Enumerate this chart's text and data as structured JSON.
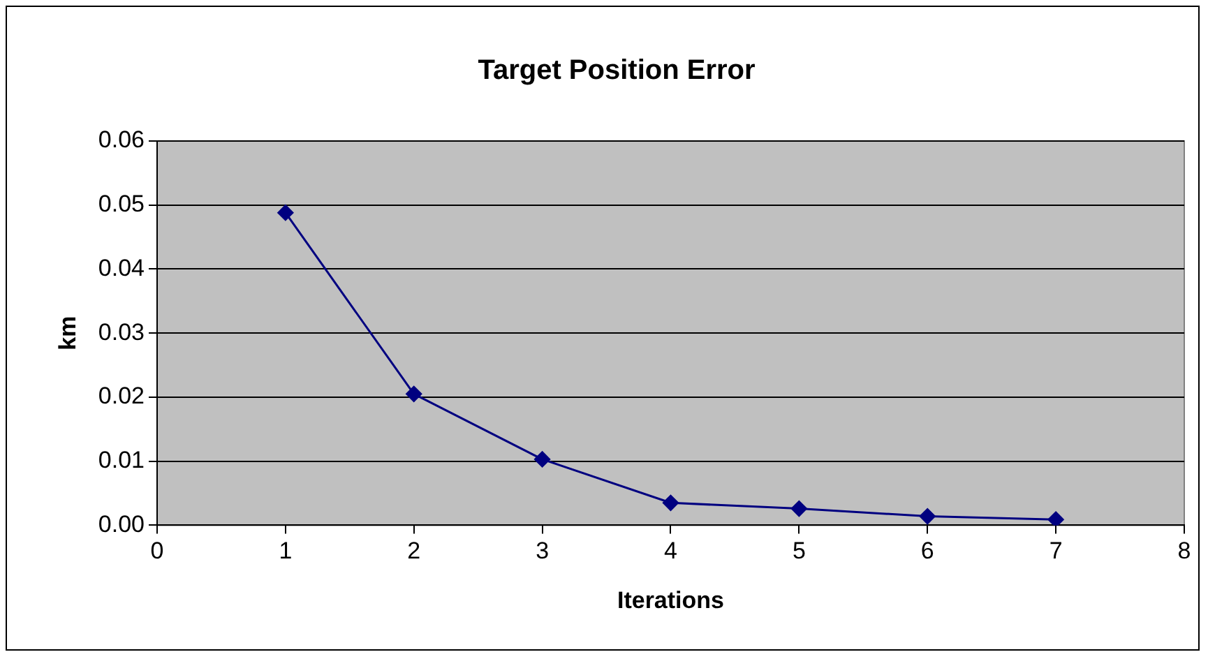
{
  "chart_data": {
    "type": "line",
    "title": "Target Position Error",
    "xlabel": "Iterations",
    "ylabel": "km",
    "x": [
      1,
      2,
      3,
      4,
      5,
      6,
      7
    ],
    "series": [
      {
        "color": "#000080",
        "values": [
          0.0488,
          0.0205,
          0.0103,
          0.0035,
          0.0026,
          0.0014,
          0.0009
        ]
      }
    ],
    "xlim": [
      0,
      8
    ],
    "xticks": [
      0,
      1,
      2,
      3,
      4,
      5,
      6,
      7,
      8
    ],
    "ylim": [
      0,
      0.06
    ],
    "yticks": [
      {
        "value": 0,
        "label": "0.00"
      },
      {
        "value": 0.01,
        "label": "0.01"
      },
      {
        "value": 0.02,
        "label": "0.02"
      },
      {
        "value": 0.03,
        "label": "0.03"
      },
      {
        "value": 0.04,
        "label": "0.04"
      },
      {
        "value": 0.05,
        "label": "0.05"
      },
      {
        "value": 0.06,
        "label": "0.06"
      }
    ],
    "grid": "y",
    "legend": false,
    "marker": "diamond",
    "line_style": "solid"
  }
}
